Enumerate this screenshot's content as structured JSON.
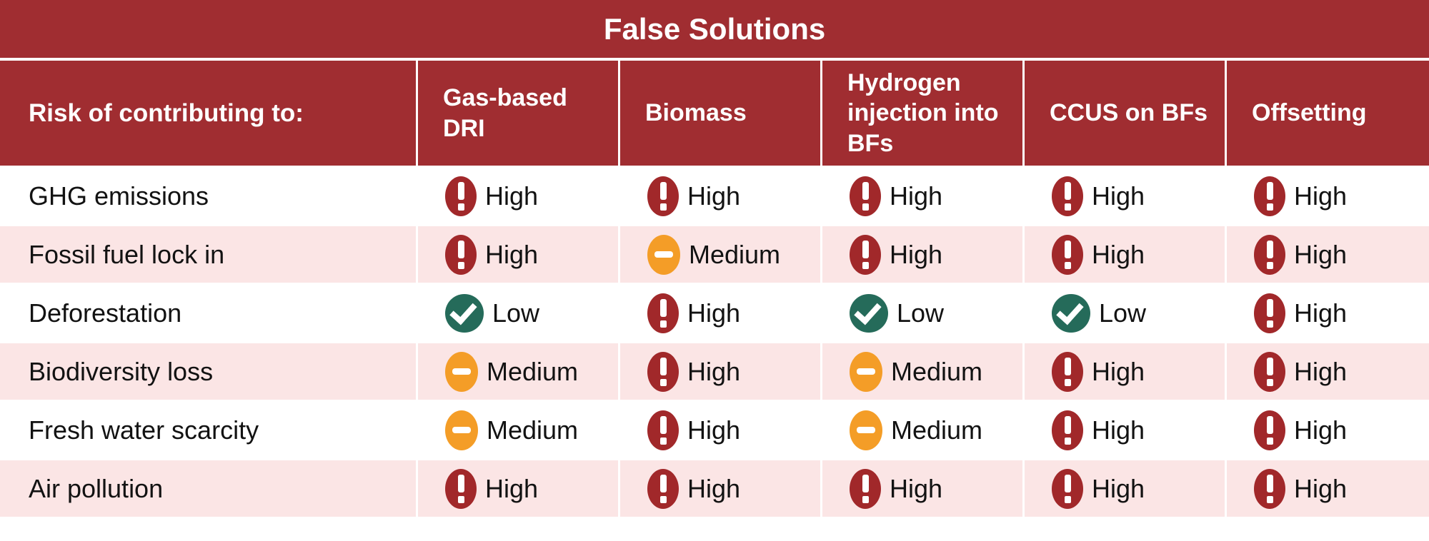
{
  "chart_data": {
    "type": "table",
    "title": "False Solutions",
    "row_header": "Risk of contributing to:",
    "columns": [
      "Gas-based DRI",
      "Biomass",
      "Hydrogen injection into BFs",
      "CCUS on BFs",
      "Offsetting"
    ],
    "rows": [
      {
        "label": "GHG emissions",
        "values": [
          "High",
          "High",
          "High",
          "High",
          "High"
        ]
      },
      {
        "label": "Fossil fuel lock in",
        "values": [
          "High",
          "Medium",
          "High",
          "High",
          "High"
        ]
      },
      {
        "label": "Deforestation",
        "values": [
          "Low",
          "High",
          "Low",
          "Low",
          "High"
        ]
      },
      {
        "label": "Biodiversity loss",
        "values": [
          "Medium",
          "High",
          "Medium",
          "High",
          "High"
        ]
      },
      {
        "label": "Fresh water scarcity",
        "values": [
          "Medium",
          "High",
          "Medium",
          "High",
          "High"
        ]
      },
      {
        "label": "Air pollution",
        "values": [
          "High",
          "High",
          "High",
          "High",
          "High"
        ]
      }
    ]
  },
  "levels": {
    "High": {
      "icon": "exclamation-icon",
      "color": "#A1282A"
    },
    "Medium": {
      "icon": "minus-icon",
      "color": "#F49D27"
    },
    "Low": {
      "icon": "check-icon",
      "color": "#256B5A"
    }
  },
  "colors": {
    "header_red": "#A02D31",
    "high_red": "#A1282A",
    "medium_orange": "#F49D27",
    "low_teal": "#256B5A",
    "row_pink": "#FBE5E5",
    "text_dark": "#151515",
    "separator_white": "#FFFFFF"
  }
}
